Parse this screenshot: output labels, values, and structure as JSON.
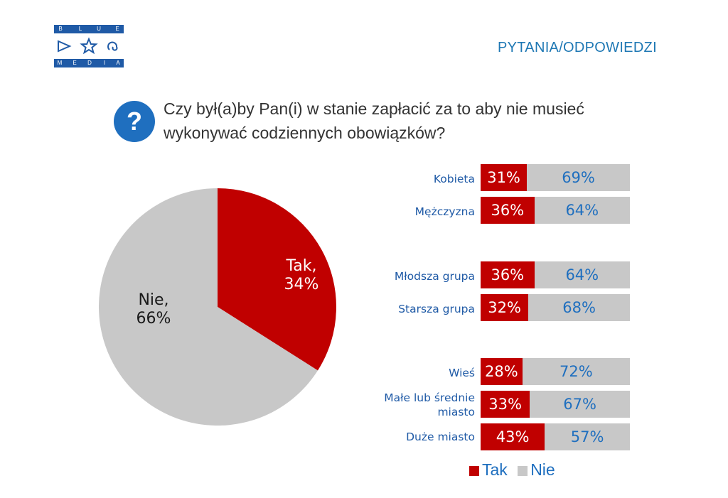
{
  "logo": {
    "top_letters": [
      "B",
      "L",
      "U",
      "E"
    ],
    "bottom_letters": [
      "M",
      "E",
      "D",
      "I",
      "A"
    ]
  },
  "header": {
    "section_title": "PYTANIA/ODPOWIEDZI"
  },
  "question": {
    "icon": "question-mark-icon",
    "symbol": "?",
    "text": "Czy był(a)by Pan(i) w stanie zapłacić za to aby nie musieć wykonywać codziennych obowiązków?"
  },
  "colors": {
    "tak": "#c00000",
    "nie": "#c8c8c8",
    "accent": "#1f6fbf"
  },
  "chart_data": [
    {
      "type": "pie",
      "slices": [
        {
          "name": "Tak",
          "value": 34,
          "label_line1": "Tak,",
          "label_line2": "34%"
        },
        {
          "name": "Nie",
          "value": 66,
          "label_line1": "Nie,",
          "label_line2": "66%"
        }
      ]
    },
    {
      "type": "bar",
      "orientation": "horizontal",
      "stacked": true,
      "categories": [
        "Kobieta",
        "Mężczyzna",
        "Młodsza grupa",
        "Starsza grupa",
        "Wieś",
        "Małe lub średnie miasto",
        "Duże miasto"
      ],
      "series": [
        {
          "name": "Tak",
          "values": [
            31,
            36,
            36,
            32,
            28,
            33,
            43
          ]
        },
        {
          "name": "Nie",
          "values": [
            69,
            64,
            64,
            68,
            72,
            67,
            57
          ]
        }
      ],
      "xlim": [
        0,
        100
      ],
      "legend": {
        "position": "bottom",
        "items": [
          "Tak",
          "Nie"
        ]
      }
    }
  ]
}
